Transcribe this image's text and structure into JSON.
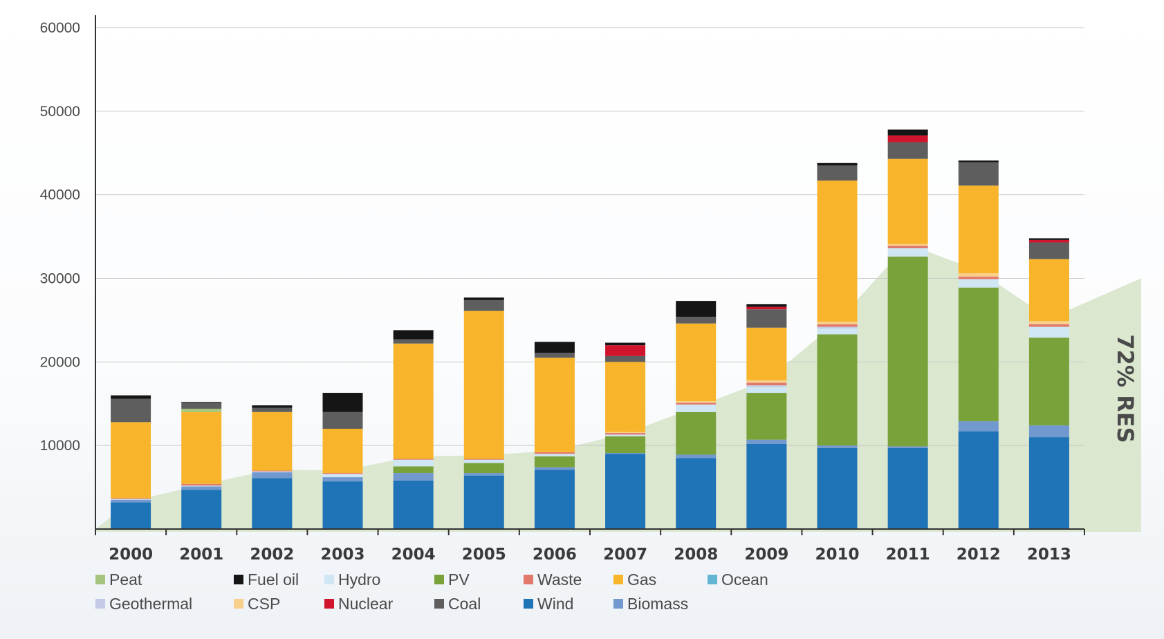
{
  "chart_data": {
    "type": "bar",
    "stacked": true,
    "categories": [
      "2000",
      "2001",
      "2002",
      "2003",
      "2004",
      "2005",
      "2006",
      "2007",
      "2008",
      "2009",
      "2010",
      "2011",
      "2012",
      "2013"
    ],
    "y_ticks": [
      "60000",
      "50000",
      "40000",
      "30000",
      "20000",
      "10000"
    ],
    "ylim": [
      0,
      60000
    ],
    "grid": true,
    "legend_position": "bottom",
    "series": [
      {
        "name": "Wind",
        "color": "#1f73b7",
        "values": [
          3200,
          4700,
          6100,
          5700,
          5800,
          6400,
          7100,
          9000,
          8500,
          10200,
          9700,
          9700,
          11700,
          11000
        ]
      },
      {
        "name": "Biomass",
        "color": "#7199cf",
        "values": [
          300,
          400,
          700,
          500,
          900,
          300,
          300,
          100,
          400,
          500,
          300,
          200,
          1200,
          1400
        ]
      },
      {
        "name": "Ocean",
        "color": "#62b6d4",
        "values": [
          0,
          0,
          0,
          0,
          0,
          0,
          0,
          0,
          0,
          0,
          0,
          0,
          0,
          0
        ]
      },
      {
        "name": "PV",
        "color": "#79a23b",
        "values": [
          0,
          0,
          0,
          0,
          800,
          1200,
          1300,
          2000,
          5100,
          5600,
          13300,
          22700,
          16000,
          10500
        ]
      },
      {
        "name": "Hydro",
        "color": "#cfe6f4",
        "values": [
          100,
          100,
          100,
          400,
          800,
          400,
          300,
          200,
          900,
          700,
          700,
          1000,
          1000,
          1300
        ]
      },
      {
        "name": "Geothermal",
        "color": "#c4cbe6",
        "values": [
          0,
          0,
          0,
          0,
          0,
          0,
          0,
          0,
          0,
          200,
          200,
          0,
          0,
          0
        ]
      },
      {
        "name": "Waste",
        "color": "#e17a6d",
        "values": [
          100,
          200,
          100,
          100,
          100,
          100,
          200,
          200,
          200,
          300,
          300,
          300,
          300,
          300
        ]
      },
      {
        "name": "CSP",
        "color": "#f9cf8c",
        "values": [
          0,
          0,
          0,
          0,
          0,
          0,
          0,
          100,
          200,
          300,
          300,
          200,
          400,
          400
        ]
      },
      {
        "name": "Gas",
        "color": "#f8b52b",
        "values": [
          9100,
          8600,
          7000,
          5300,
          13800,
          17700,
          11300,
          8400,
          9300,
          6300,
          16900,
          10200,
          10500,
          7400
        ]
      },
      {
        "name": "Peat",
        "color": "#a7c47e",
        "values": [
          0,
          400,
          0,
          0,
          0,
          0,
          0,
          0,
          0,
          0,
          0,
          0,
          0,
          0
        ]
      },
      {
        "name": "Coal",
        "color": "#5e5e5e",
        "values": [
          2800,
          700,
          500,
          2000,
          500,
          1300,
          600,
          700,
          800,
          2200,
          1800,
          2000,
          2800,
          2000
        ]
      },
      {
        "name": "Nuclear",
        "color": "#d0142c",
        "values": [
          0,
          0,
          0,
          0,
          0,
          0,
          0,
          1300,
          0,
          300,
          0,
          800,
          0,
          300
        ]
      },
      {
        "name": "Fuel oil",
        "color": "#151515",
        "values": [
          400,
          100,
          300,
          2300,
          1100,
          300,
          1300,
          300,
          1900,
          300,
          300,
          700,
          200,
          200
        ]
      }
    ],
    "res_area": {
      "color": "#dbe7cf",
      "values": [
        3300,
        5300,
        7100,
        7000,
        8700,
        8800,
        9400,
        11400,
        14600,
        17800,
        24800,
        34100,
        30900,
        25200
      ],
      "start_value": 0,
      "end_value": 30000,
      "annotation": "72% RES"
    },
    "legend_order": [
      "Peat",
      "Fuel oil",
      "Hydro",
      "PV",
      "Waste",
      "Gas",
      "Ocean",
      "Geothermal",
      "CSP",
      "Nuclear",
      "Coal",
      "Wind",
      "Biomass"
    ]
  }
}
